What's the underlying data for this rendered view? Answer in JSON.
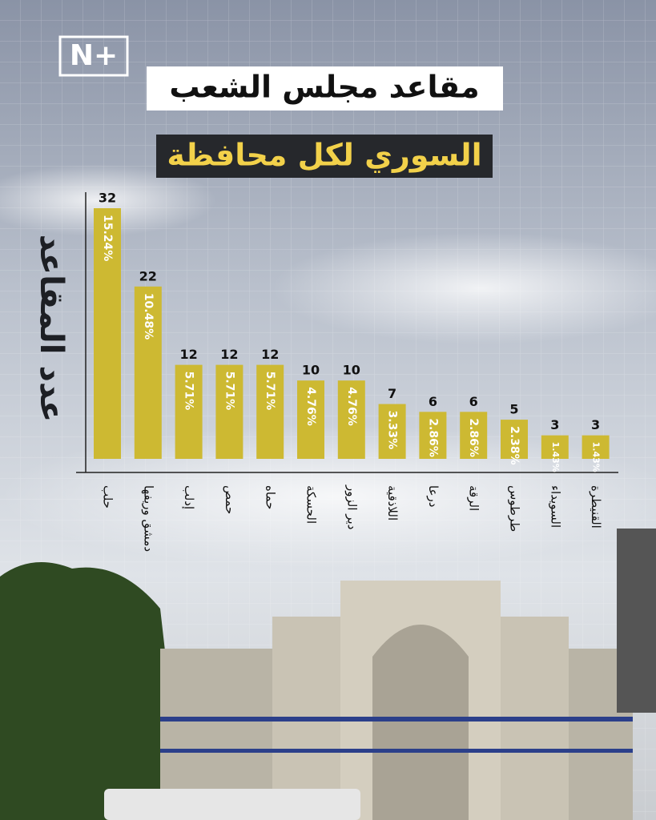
{
  "logo": "N+",
  "chart_data": {
    "type": "bar",
    "title": "مقاعد مجلس الشعب",
    "subtitle": "السوري لكل محافظة",
    "y_label": "عدد المقاعد",
    "categories": [
      "حلب",
      "دمشق وريفها",
      "إدلب",
      "حمص",
      "حماه",
      "الحسكة",
      "دير الزور",
      "اللاذقية",
      "درعا",
      "الرقة",
      "طرطوس",
      "السويداء",
      "القنيطرة"
    ],
    "values": [
      32,
      22,
      12,
      12,
      12,
      10,
      10,
      7,
      6,
      6,
      5,
      3,
      3
    ],
    "shares": [
      "15.24%",
      "10.48%",
      "5.71%",
      "5.71%",
      "5.71%",
      "4.76%",
      "4.76%",
      "3.33%",
      "2.86%",
      "2.86%",
      "2.38%",
      "1.43%",
      "1.43%"
    ],
    "color": "#cdb932",
    "ylim": [
      0,
      32
    ]
  }
}
